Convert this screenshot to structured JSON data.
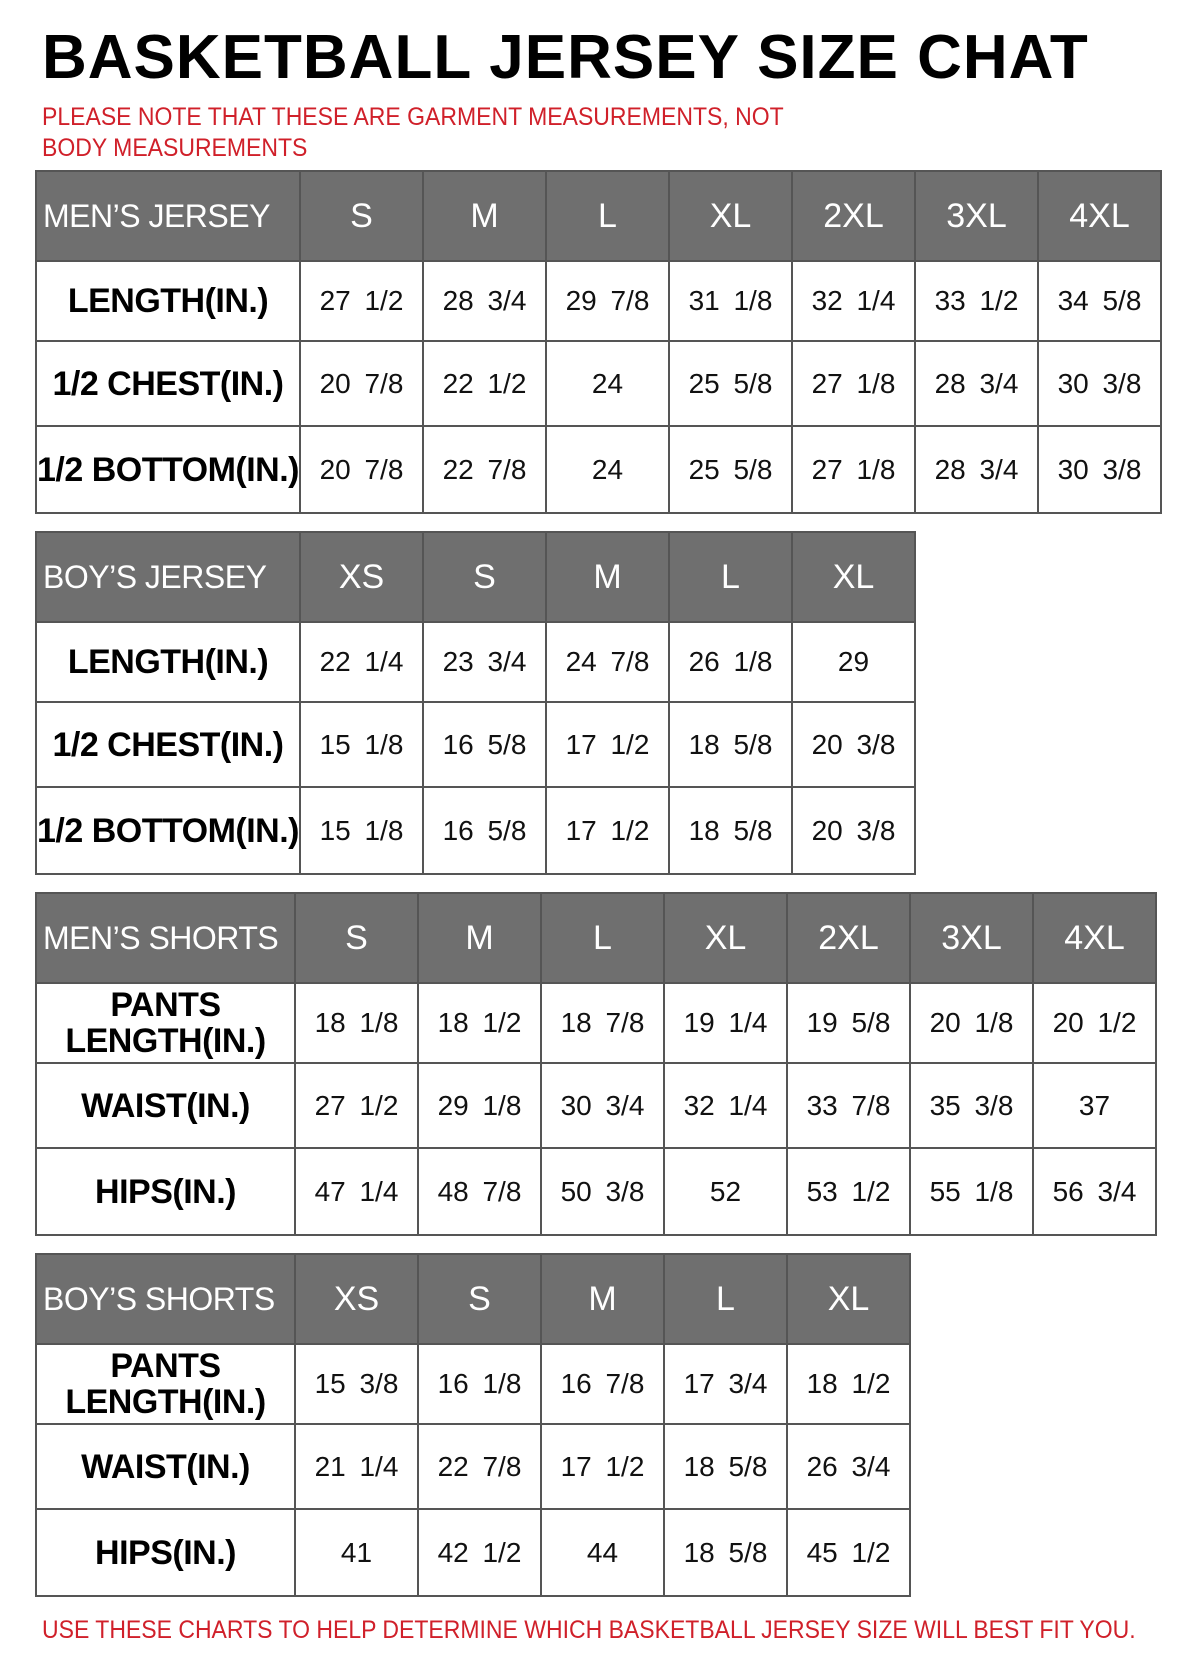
{
  "title": "BASKETBALL JERSEY SIZE CHAT",
  "note": "PLEASE NOTE THAT THESE ARE GARMENT MEASUREMENTS, NOT BODY MEASUREMENTS",
  "footer": "USE THESE CHARTS TO HELP DETERMINE WHICH BASKETBALL JERSEY SIZE WILL BEST FIT YOU.",
  "colors": {
    "header_bg": "#6f6f6f",
    "note_red": "#d0202a",
    "border": "#555555"
  },
  "tables": [
    {
      "title": "MEN’S JERSEY",
      "sizes": [
        "S",
        "M",
        "L",
        "XL",
        "2XL",
        "3XL",
        "4XL"
      ],
      "rows": [
        {
          "label": "LENGTH(IN.)",
          "values": [
            "27  1/2",
            "28  3/4",
            "29  7/8",
            "31  1/8",
            "32  1/4",
            "33  1/2",
            "34  5/8"
          ]
        },
        {
          "label": "1/2  CHEST(IN.)",
          "values": [
            "20  7/8",
            "22  1/2",
            "24",
            "25  5/8",
            "27  1/8",
            "28  3/4",
            "30  3/8"
          ]
        },
        {
          "label": "1/2  BOTTOM(IN.)",
          "values": [
            "20  7/8",
            "22  7/8",
            "24",
            "25  5/8",
            "27  1/8",
            "28  3/4",
            "30  3/8"
          ]
        }
      ]
    },
    {
      "title": "BOY’S JERSEY",
      "sizes": [
        "XS",
        "S",
        "M",
        "L",
        "XL"
      ],
      "rows": [
        {
          "label": "LENGTH(IN.)",
          "values": [
            "22  1/4",
            "23  3/4",
            "24  7/8",
            "26  1/8",
            "29"
          ]
        },
        {
          "label": "1/2  CHEST(IN.)",
          "values": [
            "15  1/8",
            "16  5/8",
            "17  1/2",
            "18  5/8",
            "20  3/8"
          ]
        },
        {
          "label": "1/2  BOTTOM(IN.)",
          "values": [
            "15  1/8",
            "16  5/8",
            "17  1/2",
            "18  5/8",
            "20  3/8"
          ]
        }
      ]
    },
    {
      "title": "MEN’S SHORTS",
      "sizes": [
        "S",
        "M",
        "L",
        "XL",
        "2XL",
        "3XL",
        "4XL"
      ],
      "rows": [
        {
          "label": "PANTS LENGTH(IN.)",
          "values": [
            "18  1/8",
            "18  1/2",
            "18  7/8",
            "19  1/4",
            "19  5/8",
            "20  1/8",
            "20  1/2"
          ]
        },
        {
          "label": "WAIST(IN.)",
          "values": [
            "27  1/2",
            "29  1/8",
            "30  3/4",
            "32  1/4",
            "33  7/8",
            "35  3/8",
            "37"
          ]
        },
        {
          "label": "HIPS(IN.)",
          "values": [
            "47  1/4",
            "48  7/8",
            "50  3/8",
            "52",
            "53  1/2",
            "55  1/8",
            "56  3/4"
          ]
        }
      ]
    },
    {
      "title": "BOY’S SHORTS",
      "sizes": [
        "XS",
        "S",
        "M",
        "L",
        "XL"
      ],
      "rows": [
        {
          "label": "PANTS LENGTH(IN.)",
          "values": [
            "15  3/8",
            "16  1/8",
            "16  7/8",
            "17  3/4",
            "18  1/2"
          ]
        },
        {
          "label": "WAIST(IN.)",
          "values": [
            "21  1/4",
            "22  7/8",
            "17  1/2",
            "18  5/8",
            "26  3/4"
          ]
        },
        {
          "label": "HIPS(IN.)",
          "values": [
            "41",
            "42  1/2",
            "44",
            "18  5/8",
            "45  1/2"
          ]
        }
      ]
    }
  ]
}
